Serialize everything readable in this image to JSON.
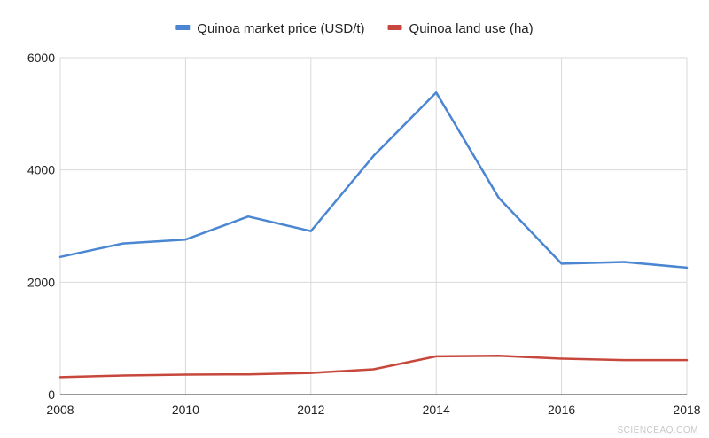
{
  "chart_data": {
    "type": "line",
    "title": "",
    "xlabel": "",
    "ylabel": "",
    "x": [
      2008,
      2009,
      2010,
      2011,
      2012,
      2013,
      2014,
      2015,
      2016,
      2017,
      2018
    ],
    "xlim": [
      2008,
      2018
    ],
    "ylim": [
      0,
      6000
    ],
    "x_ticks": [
      2008,
      2010,
      2012,
      2014,
      2016,
      2018
    ],
    "y_ticks": [
      0,
      2000,
      4000,
      6000
    ],
    "grid": true,
    "legend_position": "top",
    "series": [
      {
        "name": "Quinoa market price (USD/t)",
        "color": "#4a86d2",
        "values": [
          2450,
          2690,
          2760,
          3170,
          2910,
          4250,
          5380,
          3500,
          2330,
          2360,
          2260
        ]
      },
      {
        "name": "Quinoa land use (ha)",
        "color": "#c8473c",
        "values": [
          310,
          340,
          355,
          360,
          385,
          450,
          680,
          690,
          640,
          615,
          615
        ]
      }
    ]
  },
  "watermark": "SCIENCEAQ.COM"
}
